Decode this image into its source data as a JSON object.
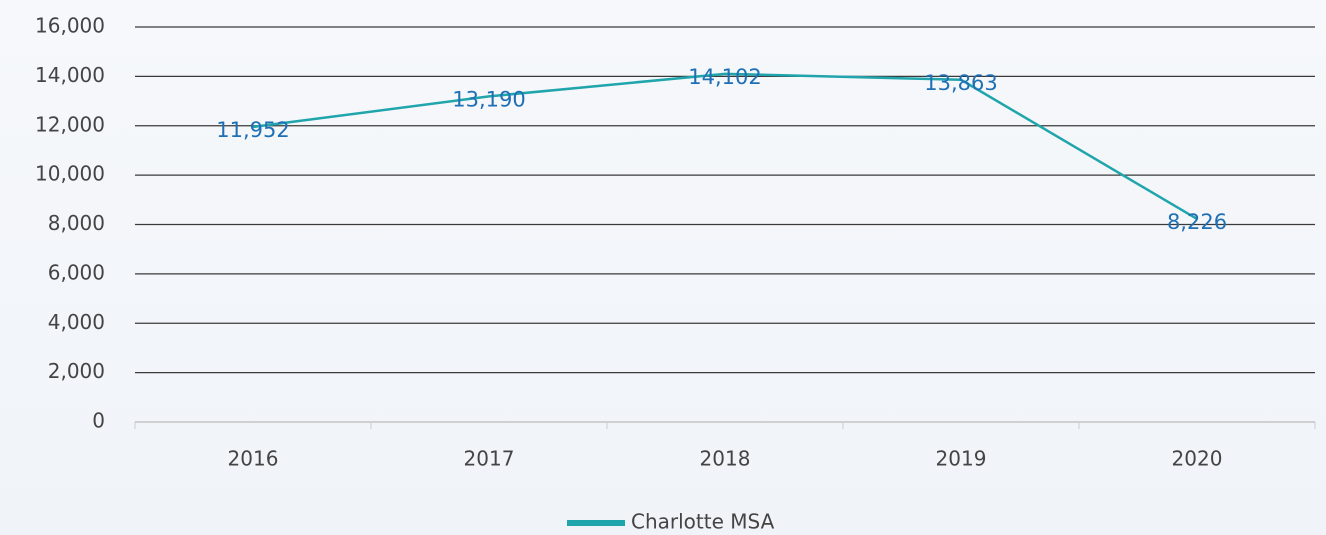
{
  "chart_data": {
    "type": "line",
    "categories": [
      "2016",
      "2017",
      "2018",
      "2019",
      "2020"
    ],
    "series": [
      {
        "name": "Charlotte MSA",
        "color": "#1fa5ab",
        "values": [
          11952,
          13190,
          14102,
          13863,
          8226
        ],
        "value_labels": [
          "11,952",
          "13,190",
          "14,102",
          "13,863",
          "8,226"
        ]
      }
    ],
    "ylim": [
      0,
      16000
    ],
    "yticks": [
      0,
      {
        "value": 2000,
        "label": "2,000"
      },
      {
        "value": 4000,
        "label": "4,000"
      },
      {
        "value": 6000,
        "label": "6,000"
      },
      {
        "value": 8000,
        "label": "8,000"
      },
      {
        "value": 10000,
        "label": "10,000"
      },
      {
        "value": 12000,
        "label": "12,000"
      },
      {
        "value": 14000,
        "label": "14,000"
      },
      {
        "value": 16000,
        "label": "16,000"
      }
    ],
    "grid": true,
    "legend": "bottom"
  }
}
